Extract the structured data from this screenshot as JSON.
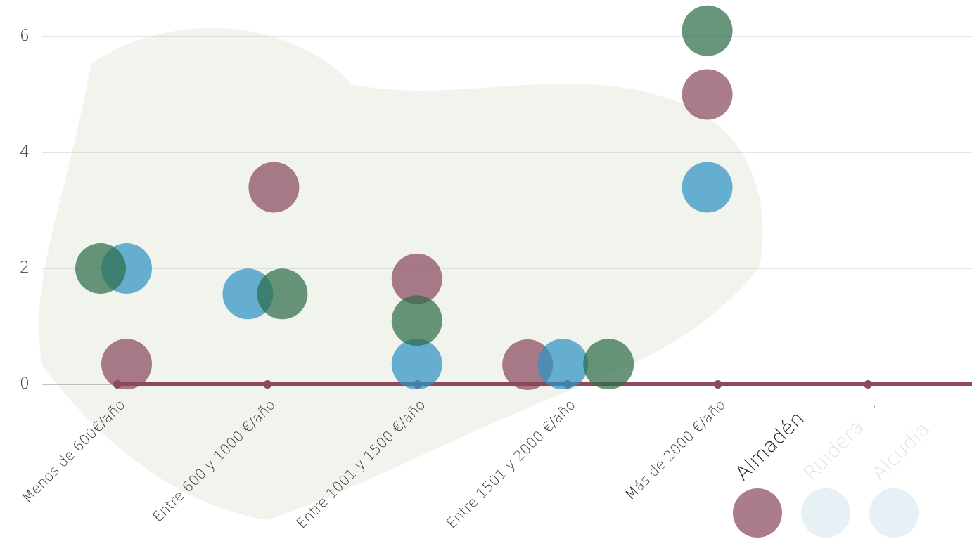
{
  "chart_data": {
    "type": "bubble",
    "categories": [
      "Menos de 600€/año",
      "Entre 600 y 1000 €/año",
      "Entre 1001 y 1500 €/año",
      "Entre 1501 y 2000 €/año",
      "Más de 2000 €/año",
      "."
    ],
    "series": [
      {
        "name": "Almadén",
        "color": "#8b4a5e",
        "values": [
          0.35,
          3.4,
          1.82,
          0.34,
          5.0,
          null
        ]
      },
      {
        "name": "Ruidera",
        "color": "#2f93c4",
        "values": [
          2.0,
          1.56,
          0.35,
          0.35,
          3.4,
          null
        ]
      },
      {
        "name": "Alcudia",
        "color": "#2e6e4a",
        "values": [
          2.0,
          1.56,
          1.1,
          0.35,
          6.1,
          null
        ]
      }
    ],
    "ylim": [
      -0.2,
      6.4
    ],
    "yticks": [
      0,
      2,
      4,
      6
    ],
    "grid": true
  }
}
